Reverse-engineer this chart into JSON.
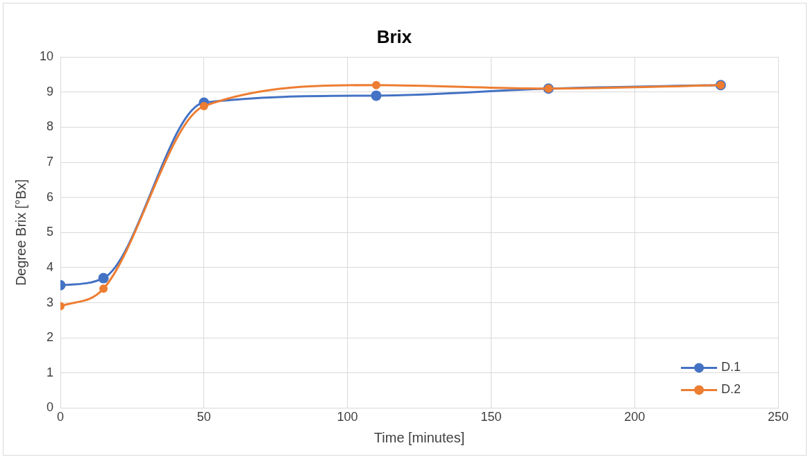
{
  "chart_data": {
    "type": "line",
    "title": "Brix",
    "xlabel": "Time [minutes]",
    "ylabel": "Degree Brix [°Bx]",
    "xlim": [
      0,
      250
    ],
    "xticks": [
      0,
      50,
      100,
      150,
      200,
      250
    ],
    "ylim": [
      0,
      10
    ],
    "yticks": [
      0,
      1,
      2,
      3,
      4,
      5,
      6,
      7,
      8,
      9,
      10
    ],
    "grid": true,
    "legend": "bottom right",
    "marker": "circle",
    "line_style": "solid",
    "x": [
      0,
      15,
      50,
      110,
      170,
      230
    ],
    "series": [
      {
        "name": "D.1",
        "color": "#4472c4",
        "values": [
          3.5,
          3.7,
          8.7,
          8.9,
          9.1,
          9.2
        ]
      },
      {
        "name": "D.2",
        "color": "#ed7d31",
        "values": [
          2.9,
          3.4,
          8.6,
          9.2,
          9.1,
          9.2
        ]
      }
    ]
  }
}
